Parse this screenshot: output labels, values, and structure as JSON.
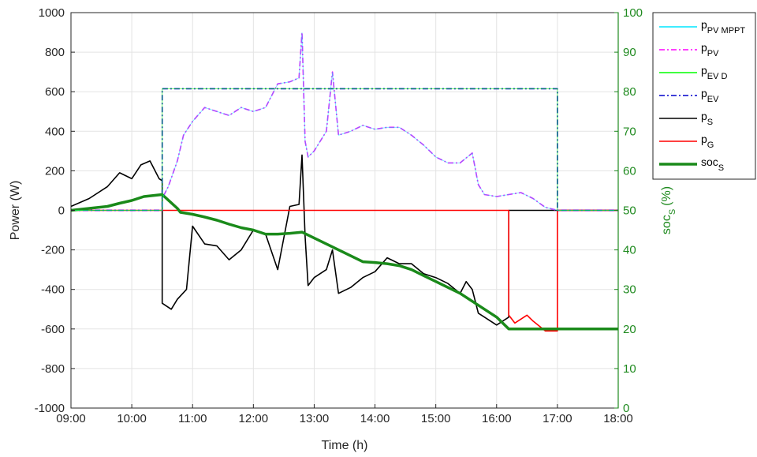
{
  "chart_data": {
    "type": "line",
    "xlabel": "Time (h)",
    "ylabel": "Power (W)",
    "ylabel_right": {
      "main": "soc",
      "sub": "S",
      "unit": "(%)"
    },
    "xlim": [
      9,
      18
    ],
    "ylim": [
      -1000,
      1000
    ],
    "ylim_right": [
      0,
      100
    ],
    "x_ticks": [
      9,
      10,
      11,
      12,
      13,
      14,
      15,
      16,
      17,
      18
    ],
    "x_tick_labels": [
      "09:00",
      "10:00",
      "11:00",
      "12:00",
      "13:00",
      "14:00",
      "15:00",
      "16:00",
      "17:00",
      "18:00"
    ],
    "y_ticks": [
      -1000,
      -800,
      -600,
      -400,
      -200,
      0,
      200,
      400,
      600,
      800,
      1000
    ],
    "y_tick_labels": [
      "-1000",
      "-800",
      "-600",
      "-400",
      "-200",
      "0",
      "200",
      "400",
      "600",
      "800",
      "1000"
    ],
    "y_ticks_right": [
      0,
      10,
      20,
      30,
      40,
      50,
      60,
      70,
      80,
      90,
      100
    ],
    "y_tick_labels_right": [
      "0",
      "10",
      "20",
      "30",
      "40",
      "50",
      "60",
      "70",
      "80",
      "90",
      "100"
    ],
    "grid": true,
    "legend_position": "top-right",
    "legend": [
      {
        "main": "p",
        "sub": "PV MPPT",
        "color": "#00e5ff",
        "dash": "solid"
      },
      {
        "main": "p",
        "sub": "PV",
        "color": "#ff00ff",
        "dash": "dashdot"
      },
      {
        "main": "p",
        "sub": "EV D",
        "color": "#00ff00",
        "dash": "solid"
      },
      {
        "main": "p",
        "sub": "EV",
        "color": "#0000cc",
        "dash": "dashdot"
      },
      {
        "main": "p",
        "sub": "S",
        "color": "#000000",
        "dash": "solid"
      },
      {
        "main": "p",
        "sub": "G",
        "color": "#ff0000",
        "dash": "solid"
      },
      {
        "main": "soc",
        "sub": "S",
        "color": "#1a8a1a",
        "dash": "thick"
      }
    ],
    "series": [
      {
        "key": "pv",
        "axis": "left",
        "x": [
          9.0,
          10.5,
          10.5,
          10.6,
          10.75,
          10.85,
          11.0,
          11.2,
          11.4,
          11.6,
          11.8,
          12.0,
          12.2,
          12.4,
          12.6,
          12.75,
          12.8,
          12.85,
          12.9,
          13.0,
          13.2,
          13.3,
          13.4,
          13.6,
          13.8,
          14.0,
          14.2,
          14.4,
          14.6,
          14.8,
          15.0,
          15.2,
          15.4,
          15.6,
          15.7,
          15.8,
          16.0,
          16.2,
          16.4,
          16.6,
          16.8,
          17.0,
          18.0
        ],
        "y": [
          0,
          0,
          60,
          120,
          250,
          380,
          450,
          520,
          500,
          480,
          520,
          500,
          520,
          640,
          650,
          670,
          900,
          350,
          270,
          300,
          400,
          700,
          380,
          400,
          430,
          410,
          420,
          420,
          380,
          330,
          270,
          240,
          240,
          290,
          130,
          80,
          70,
          80,
          90,
          60,
          15,
          0,
          0
        ]
      },
      {
        "key": "ev",
        "axis": "left",
        "x": [
          9.0,
          10.5,
          10.5,
          17.0,
          17.0,
          18.0
        ],
        "y": [
          0,
          0,
          615,
          615,
          0,
          0
        ]
      },
      {
        "key": "s",
        "axis": "left",
        "x": [
          9.0,
          9.3,
          9.6,
          9.8,
          10.0,
          10.15,
          10.3,
          10.45,
          10.5,
          10.5,
          10.65,
          10.75,
          10.9,
          11.0,
          11.2,
          11.4,
          11.6,
          11.8,
          12.0,
          12.2,
          12.4,
          12.6,
          12.75,
          12.8,
          12.85,
          12.9,
          13.0,
          13.2,
          13.3,
          13.4,
          13.6,
          13.8,
          14.0,
          14.2,
          14.4,
          14.6,
          14.8,
          15.0,
          15.2,
          15.4,
          15.5,
          15.6,
          15.7,
          15.8,
          16.0,
          16.2,
          16.2,
          16.4,
          16.6,
          17.0,
          18.0
        ],
        "y": [
          20,
          60,
          120,
          190,
          160,
          230,
          250,
          160,
          150,
          -470,
          -500,
          -450,
          -400,
          -80,
          -170,
          -180,
          -250,
          -200,
          -100,
          -120,
          -300,
          20,
          30,
          280,
          -130,
          -380,
          -340,
          -300,
          -200,
          -420,
          -390,
          -340,
          -310,
          -240,
          -270,
          -270,
          -320,
          -340,
          -370,
          -420,
          -360,
          -400,
          -520,
          -540,
          -580,
          -540,
          0,
          0,
          0,
          0,
          0
        ]
      },
      {
        "key": "g",
        "axis": "left",
        "x": [
          9.0,
          16.2,
          16.2,
          16.3,
          16.5,
          16.6,
          16.8,
          17.0,
          17.0,
          18.0
        ],
        "y": [
          0,
          0,
          -530,
          -570,
          -530,
          -560,
          -610,
          -610,
          0,
          0
        ]
      },
      {
        "key": "soc",
        "axis": "right",
        "x": [
          9.0,
          9.3,
          9.6,
          9.8,
          10.0,
          10.2,
          10.5,
          10.75,
          10.8,
          11.0,
          11.2,
          11.4,
          11.6,
          11.8,
          12.0,
          12.2,
          12.4,
          12.6,
          12.8,
          13.0,
          13.2,
          13.4,
          13.6,
          13.8,
          14.0,
          14.2,
          14.4,
          14.6,
          14.8,
          15.0,
          15.2,
          15.4,
          15.6,
          15.8,
          16.0,
          16.2,
          16.4,
          17.0,
          18.0
        ],
        "y": [
          50,
          50.5,
          51,
          51.8,
          52.5,
          53.5,
          54,
          50.5,
          49.5,
          49,
          48.3,
          47.5,
          46.5,
          45.6,
          45,
          44,
          44,
          44.2,
          44.5,
          43,
          41.5,
          40,
          38.5,
          37,
          36.8,
          36.5,
          36,
          35,
          33.5,
          32,
          30.5,
          29,
          27,
          25,
          23,
          20,
          20,
          20,
          20
        ]
      }
    ]
  }
}
